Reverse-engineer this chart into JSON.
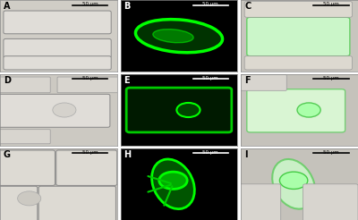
{
  "figsize": [
    4.0,
    2.46
  ],
  "dpi": 100,
  "nrows": 3,
  "ncols": 3,
  "labels": [
    "A",
    "B",
    "C",
    "D",
    "E",
    "F",
    "G",
    "H",
    "I"
  ],
  "scale_bar_text": "50 μm",
  "bg_colors": [
    "#d8d5ce",
    "#000000",
    "#d8d5ce",
    "#d8d5ce",
    "#000000",
    "#d8d5ce",
    "#d8d5ce",
    "#000000",
    "#d8d5ce"
  ],
  "label_colors": [
    "#000000",
    "#ffffff",
    "#000000",
    "#000000",
    "#ffffff",
    "#000000",
    "#000000",
    "#ffffff",
    "#000000"
  ],
  "scale_bar_colors": [
    "#000000",
    "#ffffff",
    "#000000",
    "#000000",
    "#ffffff",
    "#000000",
    "#000000",
    "#ffffff",
    "#000000"
  ],
  "cell_colors_A": [
    "#b8b5ae",
    "#c5c2bb",
    "#a8a5a0"
  ],
  "green_color": "#00cc00",
  "overlay_green": "#88ff88",
  "panel_border_color": "#888888",
  "wspace": 0.03,
  "hspace": 0.03
}
